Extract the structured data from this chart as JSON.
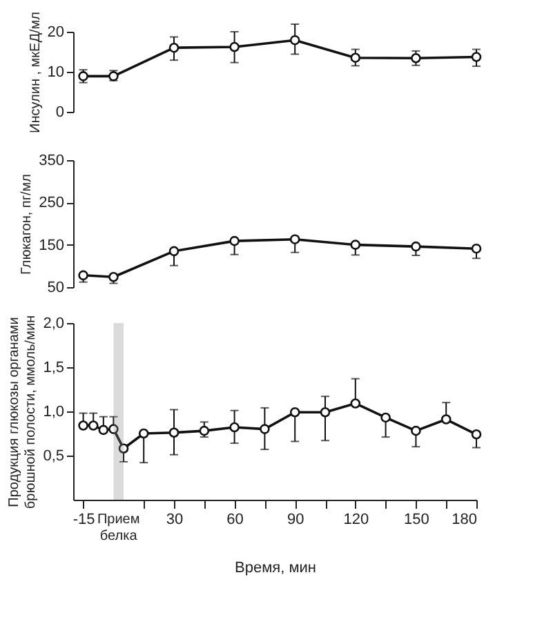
{
  "chart_data": [
    {
      "type": "line",
      "ylabel": "Инсулин , мкЕД/мл",
      "x": [
        -15,
        0,
        30,
        60,
        90,
        120,
        150,
        180
      ],
      "xlim": [
        -20,
        180
      ],
      "series": [
        {
          "color": "#111111",
          "values": [
            8.9,
            8.9,
            16.0,
            16.2,
            17.9,
            13.5,
            13.4,
            13.7
          ],
          "errors": [
            [
              7.3,
              10.5
            ],
            [
              7.8,
              10.3
            ],
            [
              12.9,
              18.7
            ],
            [
              12.3,
              20.0
            ],
            [
              14.4,
              21.9
            ],
            [
              11.5,
              15.6
            ],
            [
              11.6,
              15.2
            ],
            [
              11.4,
              15.6
            ]
          ]
        }
      ],
      "ylim": [
        0,
        20
      ],
      "yticks": [
        0,
        10,
        20
      ],
      "tick_labels": "y",
      "marker": "circle",
      "grid": false
    },
    {
      "type": "line",
      "ylabel": "Глюкагон, пг/мл",
      "x": [
        -15,
        0,
        30,
        60,
        90,
        120,
        150,
        180
      ],
      "xlim": [
        -20,
        180
      ],
      "series": [
        {
          "color": "#111111",
          "values": [
            78,
            74,
            135,
            159,
            163,
            150,
            146,
            141
          ],
          "errors": [
            [
              62,
              78
            ],
            [
              59,
              74
            ],
            [
              101,
              135
            ],
            [
              127,
              159
            ],
            [
              132,
              163
            ],
            [
              126,
              150
            ],
            [
              125,
              146
            ],
            [
              118,
              141
            ]
          ]
        }
      ],
      "ylim": [
        50,
        350
      ],
      "yticks": [
        50,
        150,
        250,
        350
      ],
      "tick_labels": "y",
      "marker": "circle",
      "grid": false
    },
    {
      "type": "line",
      "ylabel": "Продукция глюкозы органами брюшной полости, ммоль/мин",
      "xlabel": "Время, мин",
      "x": [
        -15,
        -10,
        -5,
        0,
        5,
        15,
        30,
        45,
        60,
        75,
        90,
        105,
        120,
        135,
        150,
        165,
        180
      ],
      "xlim": [
        -20,
        180
      ],
      "xticks": [
        -15,
        {
          "value": 15,
          "label": null
        },
        30,
        {
          "value": 45,
          "label": null
        },
        60,
        {
          "value": 75,
          "label": null
        },
        90,
        {
          "value": 105,
          "label": null
        },
        120,
        {
          "value": 135,
          "label": null
        },
        150,
        {
          "value": 165,
          "label": null
        },
        180
      ],
      "series": [
        {
          "color": "#111111",
          "values": [
            0.84,
            0.84,
            0.79,
            0.8,
            0.58,
            0.75,
            0.76,
            0.78,
            0.82,
            0.8,
            0.99,
            0.99,
            1.09,
            0.93,
            0.78,
            0.91,
            0.74
          ],
          "errors": [
            [
              0.84,
              0.98
            ],
            [
              0.84,
              0.98
            ],
            [
              0.79,
              0.94
            ],
            [
              0.8,
              0.94
            ],
            [
              0.43,
              0.58
            ],
            [
              0.42,
              0.75
            ],
            [
              0.51,
              1.02
            ],
            [
              0.71,
              0.88
            ],
            [
              0.64,
              1.01
            ],
            [
              0.57,
              1.04
            ],
            [
              0.66,
              0.99
            ],
            [
              0.67,
              1.17
            ],
            [
              1.09,
              1.37
            ],
            [
              0.71,
              0.93
            ],
            [
              0.6,
              0.78
            ],
            [
              0.91,
              1.1
            ],
            [
              0.59,
              0.74
            ]
          ]
        }
      ],
      "ylim": [
        0,
        2.0
      ],
      "yticks": [
        {
          "value": 0.5,
          "label": "0,5"
        },
        {
          "value": 1.0,
          "label": "1,0"
        },
        {
          "value": 1.5,
          "label": "1,5"
        },
        {
          "value": 2.0,
          "label": "2,0"
        }
      ],
      "bands": [
        {
          "axis": "x",
          "from": 0,
          "to": 5,
          "label": "Прием белка",
          "color": "#888888"
        }
      ],
      "marker": "circle",
      "grid": false
    }
  ]
}
